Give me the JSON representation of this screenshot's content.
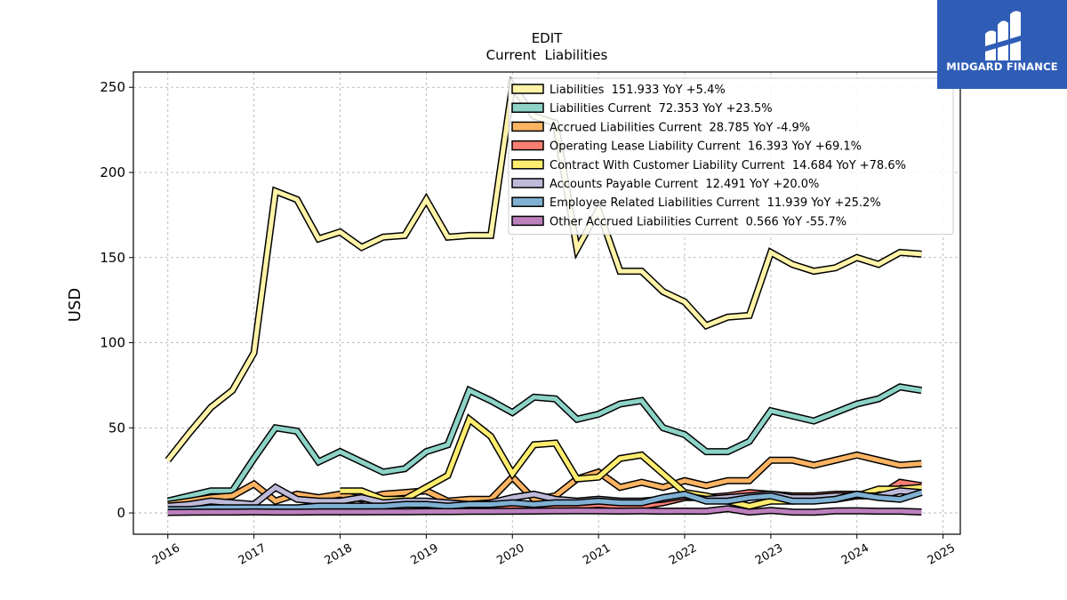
{
  "chart_data": {
    "type": "line",
    "title": "EDIT",
    "subtitle": "Current  Liabilities",
    "ylabel": "USD",
    "xlabel": "",
    "xlim": [
      2015.6,
      2025.2
    ],
    "ylim": [
      -12.5,
      259
    ],
    "x_ticks": [
      2016,
      2017,
      2018,
      2019,
      2020,
      2021,
      2022,
      2023,
      2024,
      2025
    ],
    "y_ticks": [
      0,
      50,
      100,
      150,
      200,
      250
    ],
    "grid": true,
    "legend_position": "top-right",
    "series": [
      {
        "name": "Liabilities  151.933 YoY +5.4%",
        "color": "#fff3a8",
        "x": [
          2016.0,
          2016.25,
          2016.5,
          2016.75,
          2017.0,
          2017.25,
          2017.5,
          2017.75,
          2018.0,
          2018.25,
          2018.5,
          2018.75,
          2019.0,
          2019.25,
          2019.5,
          2019.75,
          2020.0,
          2020.25,
          2020.5,
          2020.75,
          2021.0,
          2021.25,
          2021.5,
          2021.75,
          2022.0,
          2022.25,
          2022.5,
          2022.75,
          2023.0,
          2023.25,
          2023.5,
          2023.75,
          2024.0,
          2024.25,
          2024.5,
          2024.75
        ],
        "values": [
          31,
          47,
          62,
          72,
          94,
          189,
          184,
          161,
          165,
          156,
          162,
          163,
          184,
          162,
          163,
          163,
          251,
          233,
          229,
          155,
          178,
          142,
          142,
          130,
          124,
          110,
          115,
          116,
          153,
          146,
          142,
          144,
          150,
          146,
          153,
          152
        ]
      },
      {
        "name": "Liabilities Current  72.353 YoY +23.5%",
        "color": "#8dd3c7",
        "x": [
          2016.0,
          2016.25,
          2016.5,
          2016.75,
          2017.0,
          2017.25,
          2017.5,
          2017.75,
          2018.0,
          2018.25,
          2018.5,
          2018.75,
          2019.0,
          2019.25,
          2019.5,
          2019.75,
          2020.0,
          2020.25,
          2020.5,
          2020.75,
          2021.0,
          2021.25,
          2021.5,
          2021.75,
          2022.0,
          2022.25,
          2022.5,
          2022.75,
          2023.0,
          2023.25,
          2023.5,
          2023.75,
          2024.0,
          2024.25,
          2024.5,
          2024.75
        ],
        "values": [
          7,
          10,
          13,
          13,
          32,
          50,
          48,
          30,
          36,
          30,
          24,
          26,
          36,
          40,
          72,
          66,
          59,
          68,
          67,
          55,
          58,
          64,
          66,
          50,
          46,
          36,
          36,
          42,
          60,
          57,
          54,
          59,
          64,
          67,
          74,
          72
        ]
      },
      {
        "name": "Accrued Liabilities Current  28.785 YoY -4.9%",
        "color": "#fdb462",
        "x": [
          2016.0,
          2016.25,
          2016.5,
          2016.75,
          2017.0,
          2017.25,
          2017.5,
          2017.75,
          2018.0,
          2018.25,
          2018.5,
          2018.75,
          2019.0,
          2019.25,
          2019.5,
          2019.75,
          2020.0,
          2020.25,
          2020.5,
          2020.75,
          2021.0,
          2021.25,
          2021.5,
          2021.75,
          2022.0,
          2022.25,
          2022.5,
          2022.75,
          2023.0,
          2023.25,
          2023.5,
          2023.75,
          2024.0,
          2024.25,
          2024.5,
          2024.75
        ],
        "values": [
          5,
          7,
          9,
          10,
          17,
          7,
          11,
          9,
          11,
          8,
          11,
          12,
          13,
          7,
          8,
          8,
          21,
          8,
          10,
          20,
          24,
          15,
          18,
          15,
          19,
          16,
          19,
          19,
          31,
          31,
          28,
          31,
          34,
          31,
          28,
          29
        ]
      },
      {
        "name": "Operating Lease Liability Current  16.393 YoY +69.1%",
        "color": "#fb8072",
        "x": [
          2019.0,
          2019.25,
          2019.5,
          2019.75,
          2020.0,
          2020.25,
          2020.5,
          2020.75,
          2021.0,
          2021.25,
          2021.5,
          2021.75,
          2022.0,
          2022.25,
          2022.5,
          2022.75,
          2023.0,
          2023.25,
          2023.5,
          2023.75,
          2024.0,
          2024.25,
          2024.5,
          2024.75
        ],
        "values": [
          3,
          3,
          3,
          3,
          4,
          3,
          3,
          4,
          5,
          4,
          4,
          6,
          9,
          9,
          10,
          12,
          11,
          10,
          10,
          11,
          11,
          10,
          18,
          16
        ]
      },
      {
        "name": "Contract With Customer Liability Current  14.684 YoY +78.6%",
        "color": "#ffed6f",
        "x": [
          2018.0,
          2018.25,
          2018.5,
          2018.75,
          2019.0,
          2019.25,
          2019.5,
          2019.75,
          2020.0,
          2020.25,
          2020.5,
          2020.75,
          2021.0,
          2021.25,
          2021.5,
          2021.75,
          2022.0,
          2022.25,
          2022.5,
          2022.75,
          2023.0,
          2023.25,
          2023.5,
          2023.75,
          2024.0,
          2024.25,
          2024.5,
          2024.75
        ],
        "values": [
          13,
          13,
          8,
          8,
          15,
          22,
          55,
          45,
          23,
          40,
          41,
          20,
          21,
          32,
          34,
          23,
          12,
          10,
          7,
          4,
          7,
          7,
          8,
          8,
          10,
          14,
          14,
          15
        ]
      },
      {
        "name": "Accounts Payable Current  12.491 YoY +20.0%",
        "color": "#bebada",
        "x": [
          2016.0,
          2016.25,
          2016.5,
          2016.75,
          2017.0,
          2017.25,
          2017.5,
          2017.75,
          2018.0,
          2018.25,
          2018.5,
          2018.75,
          2019.0,
          2019.25,
          2019.5,
          2019.75,
          2020.0,
          2020.25,
          2020.5,
          2020.75,
          2021.0,
          2021.25,
          2021.5,
          2021.75,
          2022.0,
          2022.25,
          2022.5,
          2022.75,
          2023.0,
          2023.25,
          2023.5,
          2023.75,
          2024.0,
          2024.25,
          2024.5,
          2024.75
        ],
        "values": [
          4,
          5,
          7,
          6,
          5,
          15,
          8,
          7,
          7,
          9,
          6,
          7,
          7,
          6,
          5,
          6,
          9,
          11,
          8,
          7,
          8,
          7,
          7,
          8,
          10,
          8,
          9,
          10,
          11,
          9,
          9,
          10,
          10,
          10,
          13,
          12
        ]
      },
      {
        "name": "Employee Related Liabilities Current  11.939 YoY +25.2%",
        "color": "#80b1d3",
        "x": [
          2016.0,
          2016.25,
          2016.5,
          2016.75,
          2017.0,
          2017.25,
          2017.5,
          2017.75,
          2018.0,
          2018.25,
          2018.5,
          2018.75,
          2019.0,
          2019.25,
          2019.5,
          2019.75,
          2020.0,
          2020.25,
          2020.5,
          2020.75,
          2021.0,
          2021.25,
          2021.5,
          2021.75,
          2022.0,
          2022.25,
          2022.5,
          2022.75,
          2023.0,
          2023.25,
          2023.5,
          2023.75,
          2024.0,
          2024.25,
          2024.5,
          2024.75
        ],
        "values": [
          2,
          2,
          3,
          3,
          3,
          3,
          3,
          4,
          4,
          4,
          4,
          5,
          5,
          4,
          5,
          5,
          6,
          5,
          6,
          6,
          7,
          6,
          6,
          9,
          11,
          7,
          7,
          9,
          10,
          7,
          7,
          8,
          11,
          9,
          8,
          12
        ]
      },
      {
        "name": "Other Accrued Liabilities Current  0.566 YoY -55.7%",
        "color": "#bc80bd",
        "x": [
          2016.0,
          2016.25,
          2016.5,
          2016.75,
          2017.0,
          2017.25,
          2017.5,
          2017.75,
          2018.0,
          2018.25,
          2018.5,
          2018.75,
          2019.0,
          2019.25,
          2019.5,
          2019.75,
          2020.0,
          2020.25,
          2020.5,
          2020.75,
          2021.0,
          2021.25,
          2021.5,
          2021.75,
          2022.0,
          2022.25,
          2022.5,
          2022.75,
          2023.0,
          2023.25,
          2023.5,
          2023.75,
          2024.0,
          2024.25,
          2024.5,
          2024.75
        ],
        "values": [
          0.3,
          0.4,
          0.5,
          0.5,
          0.6,
          0.5,
          0.5,
          0.6,
          0.6,
          0.6,
          0.7,
          0.7,
          0.8,
          0.8,
          0.9,
          0.9,
          1.0,
          1.1,
          1.2,
          1.3,
          1.2,
          1.1,
          1.2,
          1.0,
          1.1,
          1.0,
          2.5,
          0.5,
          1.5,
          0.5,
          0.4,
          1.2,
          1.3,
          1.0,
          1.0,
          0.566
        ]
      }
    ]
  },
  "logo": {
    "text": "MIDGARD FINANCE",
    "background": "#2f5db6"
  }
}
